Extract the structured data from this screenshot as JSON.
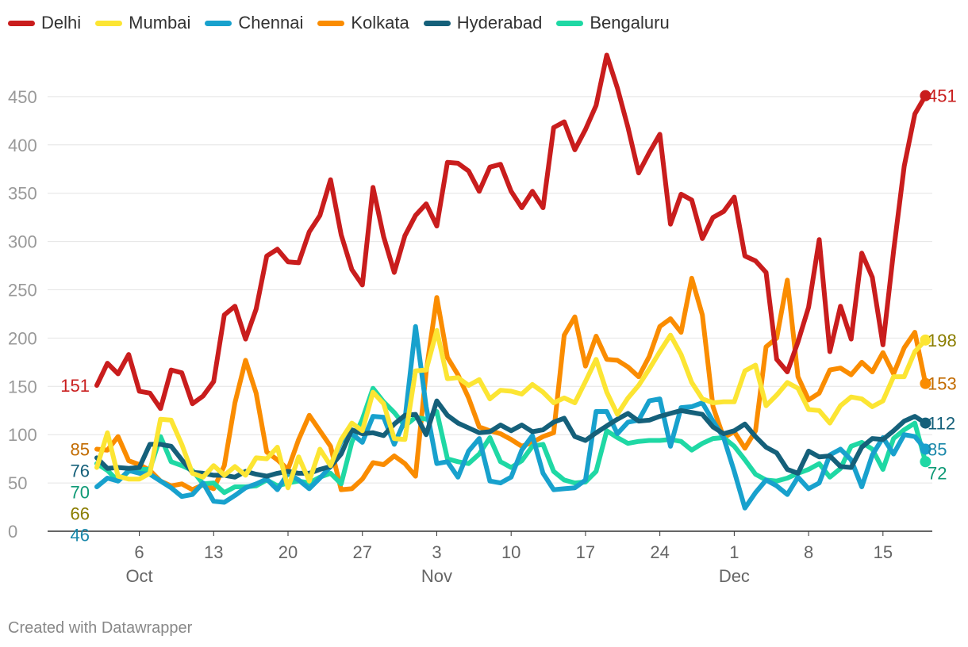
{
  "chart_data": {
    "type": "line",
    "title": "",
    "xlabel": "",
    "ylabel": "",
    "ylim": [
      0,
      500
    ],
    "yticks": [
      0,
      50,
      100,
      150,
      200,
      250,
      300,
      350,
      400,
      450
    ],
    "x_start": "2020-10-02",
    "x_end": "2020-12-18",
    "xticks": [
      {
        "date": "2020-10-06",
        "label": "6",
        "month": "Oct"
      },
      {
        "date": "2020-10-13",
        "label": "13",
        "month": ""
      },
      {
        "date": "2020-10-20",
        "label": "20",
        "month": ""
      },
      {
        "date": "2020-10-27",
        "label": "27",
        "month": ""
      },
      {
        "date": "2020-11-03",
        "label": "3",
        "month": "Nov"
      },
      {
        "date": "2020-11-10",
        "label": "10",
        "month": ""
      },
      {
        "date": "2020-11-17",
        "label": "17",
        "month": ""
      },
      {
        "date": "2020-11-24",
        "label": "24",
        "month": ""
      },
      {
        "date": "2020-12-01",
        "label": "1",
        "month": "Dec"
      },
      {
        "date": "2020-12-08",
        "label": "8",
        "month": ""
      },
      {
        "date": "2020-12-15",
        "label": "15",
        "month": ""
      }
    ],
    "grid": true,
    "legend_position": "top-left",
    "series": [
      {
        "name": "Delhi",
        "color": "#c91d1d",
        "start_label": "151",
        "end_label": "451",
        "values": [
          151,
          174,
          163,
          183,
          145,
          143,
          127,
          167,
          164,
          132,
          140,
          155,
          224,
          233,
          199,
          230,
          285,
          292,
          279,
          278,
          310,
          327,
          364,
          307,
          271,
          255,
          356,
          305,
          268,
          306,
          327,
          339,
          316,
          382,
          381,
          373,
          352,
          377,
          380,
          352,
          335,
          352,
          335,
          418,
          424,
          395,
          416,
          441,
          493,
          459,
          418,
          371,
          392,
          411,
          318,
          349,
          343,
          303,
          325,
          331,
          346,
          285,
          280,
          268,
          178,
          165,
          196,
          232,
          302,
          186,
          233,
          199,
          288,
          263,
          193,
          290,
          378,
          432,
          451
        ],
        "label_color": "#c91d1d"
      },
      {
        "name": "Mumbai",
        "color": "#fce533",
        "start_label": "66",
        "end_label": "198",
        "values": [
          66,
          102,
          57,
          54,
          54,
          60,
          116,
          115,
          90,
          60,
          56,
          68,
          58,
          67,
          58,
          76,
          75,
          87,
          45,
          77,
          52,
          85,
          68,
          95,
          112,
          104,
          144,
          132,
          96,
          95,
          166,
          167,
          208,
          158,
          159,
          151,
          157,
          137,
          146,
          145,
          142,
          152,
          144,
          133,
          138,
          133,
          155,
          178,
          144,
          121,
          138,
          151,
          168,
          186,
          203,
          183,
          154,
          137,
          133,
          134,
          134,
          166,
          172,
          130,
          141,
          154,
          148,
          126,
          125,
          112,
          130,
          139,
          137,
          129,
          135,
          160,
          160,
          186,
          198
        ],
        "label_color": "#8a7d00"
      },
      {
        "name": "Chennai",
        "color": "#18a1cd",
        "start_label": "46",
        "end_label": "85",
        "values": [
          46,
          55,
          52,
          63,
          60,
          59,
          52,
          45,
          36,
          38,
          50,
          31,
          30,
          37,
          45,
          49,
          54,
          43,
          60,
          53,
          44,
          55,
          67,
          93,
          101,
          92,
          119,
          118,
          90,
          115,
          212,
          129,
          70,
          72,
          56,
          83,
          96,
          52,
          50,
          56,
          84,
          99,
          60,
          43,
          44,
          45,
          53,
          124,
          124,
          101,
          113,
          115,
          135,
          137,
          88,
          128,
          129,
          133,
          114,
          97,
          62,
          24,
          40,
          53,
          47,
          38,
          56,
          44,
          50,
          79,
          85,
          74,
          46,
          79,
          97,
          80,
          100,
          98,
          85
        ],
        "label_color": "#1a88aa"
      },
      {
        "name": "Kolkata",
        "color": "#fa8c00",
        "start_label": "85",
        "end_label": "153",
        "values": [
          85,
          84,
          98,
          73,
          69,
          63,
          52,
          47,
          49,
          43,
          48,
          44,
          68,
          133,
          177,
          143,
          82,
          74,
          64,
          95,
          120,
          104,
          88,
          43,
          44,
          54,
          71,
          69,
          78,
          70,
          57,
          165,
          242,
          180,
          162,
          138,
          108,
          104,
          101,
          95,
          88,
          92,
          98,
          102,
          203,
          222,
          171,
          202,
          178,
          177,
          170,
          160,
          181,
          212,
          220,
          206,
          262,
          224,
          129,
          97,
          103,
          86,
          104,
          191,
          200,
          260,
          160,
          136,
          143,
          167,
          169,
          162,
          175,
          165,
          185,
          163,
          190,
          206,
          153
        ],
        "label_color": "#c26b00"
      },
      {
        "name": "Hyderabad",
        "color": "#15607a",
        "start_label": "76",
        "end_label": "112",
        "values": [
          76,
          65,
          66,
          65,
          66,
          90,
          90,
          88,
          74,
          61,
          60,
          58,
          58,
          56,
          62,
          59,
          57,
          60,
          62,
          60,
          60,
          64,
          67,
          80,
          105,
          101,
          102,
          99,
          111,
          120,
          121,
          100,
          135,
          120,
          112,
          107,
          102,
          103,
          110,
          104,
          110,
          103,
          105,
          113,
          117,
          98,
          94,
          102,
          109,
          116,
          122,
          114,
          115,
          119,
          122,
          125,
          123,
          121,
          108,
          101,
          104,
          111,
          98,
          87,
          81,
          64,
          60,
          83,
          77,
          78,
          67,
          66,
          87,
          96,
          95,
          104,
          114,
          119,
          112
        ],
        "label_color": "#15607a"
      },
      {
        "name": "Bengaluru",
        "color": "#1fd8a4",
        "start_label": "70",
        "end_label": "72",
        "values": [
          70,
          63,
          52,
          62,
          64,
          64,
          98,
          72,
          68,
          63,
          49,
          50,
          40,
          46,
          46,
          47,
          53,
          47,
          50,
          52,
          50,
          56,
          60,
          49,
          92,
          116,
          148,
          134,
          123,
          109,
          118,
          116,
          124,
          75,
          72,
          70,
          80,
          97,
          72,
          66,
          73,
          88,
          90,
          62,
          53,
          50,
          51,
          62,
          104,
          97,
          91,
          93,
          94,
          94,
          95,
          93,
          84,
          91,
          96,
          97,
          88,
          74,
          59,
          53,
          52,
          55,
          60,
          64,
          70,
          56,
          65,
          88,
          92,
          85,
          64,
          96,
          105,
          112,
          72
        ],
        "label_color": "#0f9a76"
      }
    ],
    "credit": "Created with Datawrapper"
  }
}
